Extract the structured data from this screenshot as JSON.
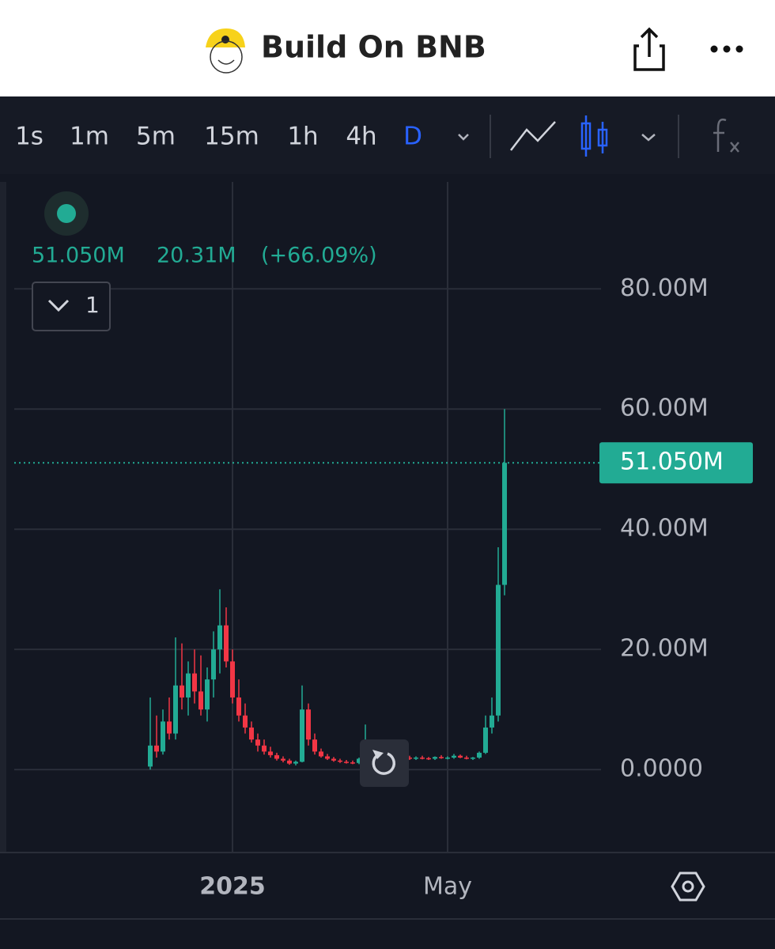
{
  "header": {
    "title": "Build On BNB"
  },
  "toolbar": {
    "intervals": [
      "1s",
      "1m",
      "5m",
      "15m",
      "1h",
      "4h",
      "D"
    ],
    "active": 6
  },
  "legend": {
    "price": "51.050M",
    "change": "20.31M",
    "change_pct": "(+66.09%)",
    "pane_count": "1"
  },
  "chart_data": {
    "type": "candlestick",
    "categories": [
      null,
      null,
      null,
      null,
      null,
      null,
      null,
      null,
      null,
      null,
      null,
      null,
      null,
      "2025",
      null,
      null,
      null,
      null,
      null,
      null,
      null,
      null,
      null,
      null,
      null,
      null,
      null,
      null,
      null,
      null,
      null,
      null,
      null,
      null,
      null,
      null,
      null,
      null,
      null,
      null,
      null,
      null,
      null,
      null,
      null,
      null,
      null,
      "May",
      null,
      null,
      null,
      null,
      null,
      null,
      null,
      null,
      null
    ],
    "candles": [
      {
        "open": 0.5,
        "high": 12,
        "low": 0,
        "close": 4
      },
      {
        "open": 4,
        "high": 9,
        "low": 2,
        "close": 3
      },
      {
        "open": 3,
        "high": 10,
        "low": 2.5,
        "close": 8
      },
      {
        "open": 8,
        "high": 12,
        "low": 5,
        "close": 6
      },
      {
        "open": 6,
        "high": 22,
        "low": 5,
        "close": 14
      },
      {
        "open": 14,
        "high": 21,
        "low": 10,
        "close": 12
      },
      {
        "open": 12,
        "high": 18,
        "low": 9,
        "close": 16
      },
      {
        "open": 16,
        "high": 20,
        "low": 11,
        "close": 13
      },
      {
        "open": 13,
        "high": 19,
        "low": 9,
        "close": 10
      },
      {
        "open": 10,
        "high": 17,
        "low": 8,
        "close": 15
      },
      {
        "open": 15,
        "high": 23,
        "low": 12,
        "close": 20
      },
      {
        "open": 20,
        "high": 30,
        "low": 16,
        "close": 24
      },
      {
        "open": 24,
        "high": 27,
        "low": 17,
        "close": 18
      },
      {
        "open": 18,
        "high": 20,
        "low": 11,
        "close": 12
      },
      {
        "open": 12,
        "high": 15,
        "low": 8,
        "close": 9
      },
      {
        "open": 9,
        "high": 11,
        "low": 6,
        "close": 7
      },
      {
        "open": 7,
        "high": 8,
        "low": 4.5,
        "close": 5
      },
      {
        "open": 5,
        "high": 6,
        "low": 3,
        "close": 4
      },
      {
        "open": 4,
        "high": 5,
        "low": 2.5,
        "close": 3
      },
      {
        "open": 3,
        "high": 3.8,
        "low": 2,
        "close": 2.4
      },
      {
        "open": 2.4,
        "high": 2.8,
        "low": 1.5,
        "close": 1.8
      },
      {
        "open": 1.8,
        "high": 2.2,
        "low": 1.2,
        "close": 1.5
      },
      {
        "open": 1.5,
        "high": 1.8,
        "low": 0.8,
        "close": 1
      },
      {
        "open": 1,
        "high": 1.5,
        "low": 0.7,
        "close": 1.3
      },
      {
        "open": 1.3,
        "high": 14,
        "low": 1.2,
        "close": 10
      },
      {
        "open": 10,
        "high": 11,
        "low": 4,
        "close": 5
      },
      {
        "open": 5,
        "high": 6,
        "low": 2.5,
        "close": 3
      },
      {
        "open": 3,
        "high": 3.5,
        "low": 2,
        "close": 2.2
      },
      {
        "open": 2.2,
        "high": 2.6,
        "low": 1.6,
        "close": 1.8
      },
      {
        "open": 1.8,
        "high": 2.1,
        "low": 1.3,
        "close": 1.5
      },
      {
        "open": 1.5,
        "high": 1.8,
        "low": 1.1,
        "close": 1.3
      },
      {
        "open": 1.3,
        "high": 1.6,
        "low": 1,
        "close": 1.2
      },
      {
        "open": 1.2,
        "high": 1.5,
        "low": 0.9,
        "close": 1.1
      },
      {
        "open": 1.1,
        "high": 2,
        "low": 0.9,
        "close": 1.8
      },
      {
        "open": 1.8,
        "high": 7.5,
        "low": 1.6,
        "close": 3
      },
      {
        "open": 3,
        "high": 3.5,
        "low": 1.8,
        "close": 2
      },
      {
        "open": 2,
        "high": 2.5,
        "low": 1.5,
        "close": 1.8
      },
      {
        "open": 1.8,
        "high": 2.2,
        "low": 1.4,
        "close": 1.6
      },
      {
        "open": 1.6,
        "high": 2,
        "low": 1.3,
        "close": 1.9
      },
      {
        "open": 1.9,
        "high": 2.7,
        "low": 1.7,
        "close": 2.4
      },
      {
        "open": 2.4,
        "high": 2.6,
        "low": 1.8,
        "close": 2
      },
      {
        "open": 2,
        "high": 2.3,
        "low": 1.6,
        "close": 1.8
      },
      {
        "open": 1.8,
        "high": 2.2,
        "low": 1.6,
        "close": 2
      },
      {
        "open": 2,
        "high": 2.3,
        "low": 1.7,
        "close": 1.9
      },
      {
        "open": 1.9,
        "high": 2.1,
        "low": 1.6,
        "close": 1.8
      },
      {
        "open": 1.8,
        "high": 2.2,
        "low": 1.6,
        "close": 2.1
      },
      {
        "open": 2.1,
        "high": 2.4,
        "low": 1.8,
        "close": 1.9
      },
      {
        "open": 1.9,
        "high": 2.2,
        "low": 1.7,
        "close": 2
      },
      {
        "open": 2,
        "high": 2.6,
        "low": 1.8,
        "close": 2.3
      },
      {
        "open": 2.3,
        "high": 2.5,
        "low": 1.9,
        "close": 2
      },
      {
        "open": 2,
        "high": 2.3,
        "low": 1.7,
        "close": 1.8
      },
      {
        "open": 1.8,
        "high": 2.1,
        "low": 1.6,
        "close": 2
      },
      {
        "open": 2,
        "high": 3,
        "low": 1.8,
        "close": 2.8
      },
      {
        "open": 2.8,
        "high": 9,
        "low": 2.6,
        "close": 7
      },
      {
        "open": 7,
        "high": 12,
        "low": 6,
        "close": 9
      },
      {
        "open": 9,
        "high": 37,
        "low": 8,
        "close": 30.74
      },
      {
        "open": 30.74,
        "high": 60,
        "low": 29,
        "close": 51.05
      }
    ],
    "ylim": [
      -13.8,
      97.8
    ],
    "yticks": [
      {
        "value": 0,
        "label": "0.0000"
      },
      {
        "value": 20,
        "label": "20.00M"
      },
      {
        "value": 40,
        "label": "40.00M"
      },
      {
        "value": 60,
        "label": "60.00M"
      },
      {
        "value": 80,
        "label": "80.00M"
      }
    ],
    "last_price": {
      "value": 51.05,
      "label": "51.050M"
    },
    "up_color": "#22ab94",
    "down_color": "#f23645",
    "grid": true
  }
}
